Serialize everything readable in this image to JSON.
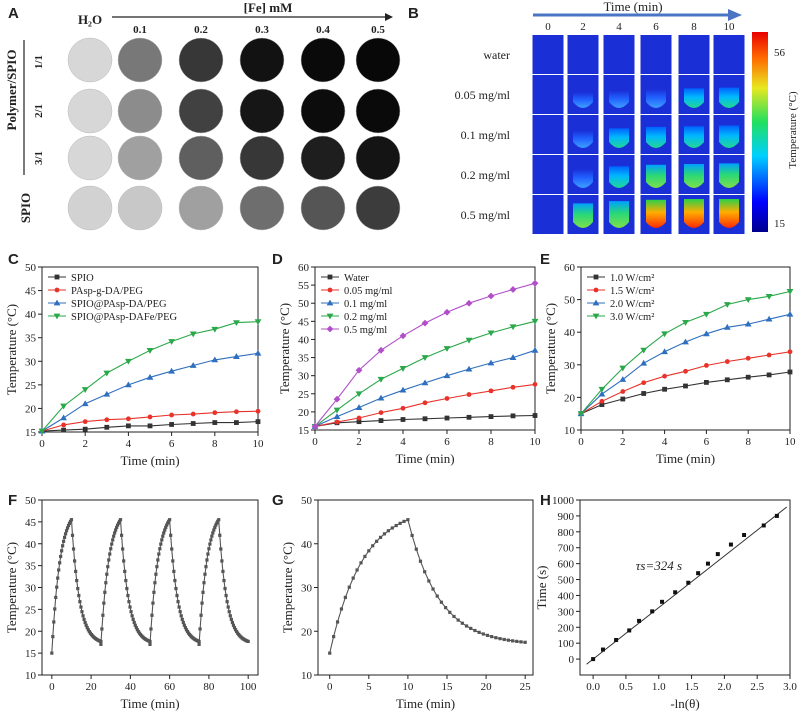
{
  "panel_labels": [
    "A",
    "B",
    "C",
    "D",
    "E",
    "F",
    "G",
    "H"
  ],
  "panelA": {
    "water_label": "H₂O",
    "fe_label": "[Fe] mM",
    "concentrations": [
      "0.1",
      "0.2",
      "0.3",
      "0.4",
      "0.5"
    ],
    "group_label": "Polymer/SPIO",
    "row_labels": [
      "1/1",
      "2/1",
      "3/1"
    ],
    "spio_label": "SPIO",
    "intensities": [
      [
        215,
        120,
        55,
        18,
        10,
        8
      ],
      [
        215,
        140,
        65,
        22,
        12,
        10
      ],
      [
        215,
        160,
        95,
        55,
        30,
        20
      ],
      [
        210,
        200,
        160,
        110,
        85,
        60
      ]
    ]
  },
  "panelB": {
    "time_label": "Time (min)",
    "times": [
      "0",
      "2",
      "4",
      "6",
      "8",
      "10"
    ],
    "rows": [
      "water",
      "0.05 mg/ml",
      "0.1 mg/ml",
      "0.2 mg/ml",
      "0.5 mg/ml"
    ],
    "colorbar_max": "56",
    "colorbar_min": "15",
    "colorbar_label": "Temperature (°C)",
    "heat_levels": [
      [
        0,
        0,
        0,
        0,
        0,
        0
      ],
      [
        0,
        0.08,
        0.2,
        0.3,
        0.35,
        0.4
      ],
      [
        0,
        0.2,
        0.35,
        0.45,
        0.5,
        0.55
      ],
      [
        0,
        0.3,
        0.5,
        0.6,
        0.65,
        0.7
      ],
      [
        0,
        0.7,
        0.85,
        0.95,
        1.0,
        1.0
      ]
    ]
  },
  "chart_data": [
    {
      "id": "C",
      "type": "line",
      "xlabel": "Time (min)",
      "ylabel": "Temperature (°C)",
      "xlim": [
        0,
        10
      ],
      "ylim": [
        15,
        50
      ],
      "xticks": [
        0,
        2,
        4,
        6,
        8,
        10
      ],
      "yticks": [
        15,
        20,
        25,
        30,
        35,
        40,
        45,
        50
      ],
      "x": [
        0,
        1,
        2,
        3,
        4,
        5,
        6,
        7,
        8,
        9,
        10
      ],
      "legend_position": "top-left",
      "series": [
        {
          "name": "SPIO",
          "color": "#333333",
          "marker": "square",
          "values": [
            15.2,
            15.4,
            15.6,
            16.0,
            16.3,
            16.3,
            16.6,
            16.8,
            17.0,
            17.0,
            17.2
          ]
        },
        {
          "name": "PAsp-g-DA/PEG",
          "color": "#e8322a",
          "marker": "circle",
          "values": [
            15.2,
            16.5,
            17.2,
            17.6,
            17.8,
            18.2,
            18.6,
            18.8,
            19.1,
            19.3,
            19.4
          ]
        },
        {
          "name": "SPIO@PAsp-DA/PEG",
          "color": "#2f6fbf",
          "marker": "triangle-up",
          "values": [
            15.2,
            18.0,
            21.0,
            23.0,
            25.0,
            26.6,
            27.9,
            29.1,
            30.3,
            31.0,
            31.7
          ]
        },
        {
          "name": "SPIO@PAsp-DAFe/PEG",
          "color": "#2aa84a",
          "marker": "triangle-down",
          "values": [
            15.2,
            20.5,
            24.0,
            27.5,
            30.0,
            32.3,
            34.2,
            35.8,
            36.8,
            38.2,
            38.4
          ]
        }
      ]
    },
    {
      "id": "D",
      "type": "line",
      "xlabel": "Time (min)",
      "ylabel": "Temperature (°C)",
      "xlim": [
        0,
        10
      ],
      "ylim": [
        15,
        60
      ],
      "xticks": [
        0,
        2,
        4,
        6,
        8,
        10
      ],
      "yticks": [
        15,
        20,
        25,
        30,
        35,
        40,
        45,
        50,
        55,
        60
      ],
      "x": [
        0,
        1,
        2,
        3,
        4,
        5,
        6,
        7,
        8,
        9,
        10
      ],
      "legend_position": "top-left",
      "series": [
        {
          "name": "Water",
          "color": "#333333",
          "marker": "square",
          "values": [
            16,
            17,
            17.3,
            17.6,
            17.9,
            18.1,
            18.3,
            18.5,
            18.7,
            18.9,
            19.0
          ]
        },
        {
          "name": "0.05 mg/ml",
          "color": "#e8322a",
          "marker": "circle",
          "values": [
            16,
            17.2,
            18.3,
            19.8,
            21.0,
            22.5,
            23.7,
            24.8,
            25.8,
            26.8,
            27.6
          ]
        },
        {
          "name": "0.1 mg/ml",
          "color": "#2f6fbf",
          "marker": "triangle-up",
          "values": [
            16,
            18.7,
            21.2,
            23.8,
            26.0,
            28.0,
            30.0,
            31.8,
            33.5,
            35.0,
            37.0
          ]
        },
        {
          "name": "0.2 mg/ml",
          "color": "#2aa84a",
          "marker": "triangle-down",
          "values": [
            16,
            20.5,
            25.0,
            29.0,
            32.0,
            35.0,
            37.5,
            39.8,
            41.8,
            43.5,
            45.0
          ]
        },
        {
          "name": "0.5 mg/ml",
          "color": "#b04fc9",
          "marker": "diamond",
          "values": [
            16,
            23.5,
            31.5,
            37.0,
            41.0,
            44.5,
            47.5,
            50.0,
            52.0,
            53.8,
            55.5
          ]
        }
      ]
    },
    {
      "id": "E",
      "type": "line",
      "xlabel": "Time (min)",
      "ylabel": "Temperature (°C)",
      "xlim": [
        0,
        10
      ],
      "ylim": [
        10,
        60
      ],
      "xticks": [
        0,
        2,
        4,
        6,
        8,
        10
      ],
      "yticks": [
        10,
        20,
        30,
        40,
        50,
        60
      ],
      "x": [
        0,
        1,
        2,
        3,
        4,
        5,
        6,
        7,
        8,
        9,
        10
      ],
      "legend_position": "top-left",
      "series": [
        {
          "name": "1.0 W/cm²",
          "color": "#333333",
          "marker": "square",
          "values": [
            15,
            17.8,
            19.5,
            21.2,
            22.5,
            23.5,
            24.6,
            25.4,
            26.2,
            26.9,
            27.8
          ]
        },
        {
          "name": "1.5 W/cm²",
          "color": "#e8322a",
          "marker": "circle",
          "values": [
            15,
            18.8,
            21.8,
            24.5,
            26.5,
            28.0,
            29.8,
            31.0,
            32.0,
            33.0,
            34.0
          ]
        },
        {
          "name": "2.0 W/cm²",
          "color": "#2f6fbf",
          "marker": "triangle-up",
          "values": [
            15,
            21.0,
            25.5,
            30.5,
            34.0,
            37.0,
            39.5,
            41.5,
            42.5,
            44.0,
            45.5
          ]
        },
        {
          "name": "3.0 W/cm²",
          "color": "#2aa84a",
          "marker": "triangle-down",
          "values": [
            15,
            22.5,
            29.0,
            34.5,
            39.5,
            43.0,
            45.5,
            48.5,
            50.0,
            51.0,
            52.5
          ]
        }
      ]
    },
    {
      "id": "F",
      "type": "line",
      "xlabel": "Time (min)",
      "ylabel": "Temperature (°C)",
      "xlim": [
        -5,
        105
      ],
      "ylim": [
        10,
        50
      ],
      "xticks": [
        0,
        20,
        40,
        60,
        80,
        100
      ],
      "yticks": [
        10,
        15,
        20,
        25,
        30,
        35,
        40,
        45,
        50
      ],
      "legend_position": "none",
      "series": [
        {
          "name": "cycles",
          "color": "#555555",
          "marker": "square",
          "cycle": {
            "count": 4,
            "period": 25,
            "heat_min": 10,
            "cool_min": 15,
            "start_temp": 15,
            "peak_temp": 45.5,
            "end_temp": 17
          }
        }
      ]
    },
    {
      "id": "G",
      "type": "line",
      "xlabel": "Time (min)",
      "ylabel": "Temperature (°C)",
      "xlim": [
        -1.5,
        26
      ],
      "ylim": [
        10,
        50
      ],
      "xticks": [
        0,
        5,
        10,
        15,
        20,
        25
      ],
      "yticks": [
        10,
        20,
        30,
        40,
        50
      ],
      "legend_position": "none",
      "series": [
        {
          "name": "single cycle",
          "color": "#555555",
          "marker": "square",
          "cycle": {
            "count": 1,
            "period": 25,
            "heat_min": 10,
            "cool_min": 15,
            "start_temp": 15,
            "peak_temp": 45.5,
            "end_temp": 16.8
          }
        }
      ]
    },
    {
      "id": "H",
      "type": "scatter",
      "xlabel": "-ln(θ)",
      "ylabel": "Time (s)",
      "xlim": [
        -0.2,
        3.0
      ],
      "ylim": [
        -100,
        1000
      ],
      "xticks": [
        0.0,
        0.5,
        1.0,
        1.5,
        2.0,
        2.5,
        3.0
      ],
      "yticks": [
        0,
        100,
        200,
        300,
        400,
        500,
        600,
        700,
        800,
        900,
        1000
      ],
      "annotation": "τs=324 s",
      "points_x": [
        0.0,
        0.15,
        0.35,
        0.55,
        0.7,
        0.9,
        1.05,
        1.25,
        1.45,
        1.6,
        1.75,
        1.9,
        2.1,
        2.3,
        2.6,
        2.8
      ],
      "points_y": [
        0,
        60,
        120,
        180,
        240,
        300,
        360,
        420,
        480,
        540,
        600,
        660,
        720,
        780,
        840,
        900
      ],
      "fit_slope": 324,
      "fit_intercept": 0,
      "legend_position": "none"
    }
  ]
}
